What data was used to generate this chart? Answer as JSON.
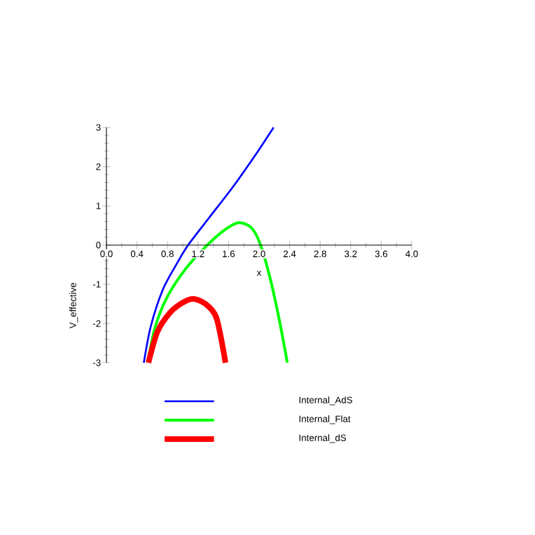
{
  "chart_data": {
    "type": "line",
    "xlabel": "x",
    "ylabel": "V_effective",
    "xlim": [
      0,
      4
    ],
    "ylim": [
      -3,
      3
    ],
    "xticks": [
      {
        "value": 0,
        "label": "0.0"
      },
      {
        "value": 0.4,
        "label": "0.4"
      },
      {
        "value": 0.8,
        "label": "0.8"
      },
      {
        "value": 1.2,
        "label": "1.2"
      },
      {
        "value": 1.6,
        "label": "1.6"
      },
      {
        "value": 2.0,
        "label": "2.0"
      },
      {
        "value": 2.4,
        "label": "2.4"
      },
      {
        "value": 2.8,
        "label": "2.8"
      },
      {
        "value": 3.2,
        "label": "3.2"
      },
      {
        "value": 3.6,
        "label": "3.6"
      },
      {
        "value": 4.0,
        "label": "4.0"
      }
    ],
    "yticks": [
      -3,
      -2,
      -1,
      0,
      1,
      2,
      3
    ],
    "legend": "bottom",
    "line_style": "solid",
    "marker": "none",
    "series": [
      {
        "name": "Internal_AdS",
        "color": "#0000ff",
        "x": [
          0.49,
          0.58,
          0.74,
          0.92,
          1.07,
          1.35,
          1.66,
          1.96,
          2.19
        ],
        "values": [
          -3,
          -2.08,
          -1.13,
          -0.48,
          0,
          0.71,
          1.49,
          2.32,
          3
        ]
      },
      {
        "name": "Internal_Flat",
        "color": "#00ff00",
        "x": [
          0.54,
          0.64,
          0.8,
          1.04,
          1.29,
          1.53,
          1.73,
          1.9,
          2.02,
          2.15,
          2.27,
          2.37
        ],
        "values": [
          -3,
          -2.08,
          -1.31,
          -0.6,
          -0.06,
          0.36,
          0.57,
          0.44,
          0,
          -0.89,
          -1.96,
          -3
        ]
      },
      {
        "name": "Internal_dS",
        "color": "#ff0000",
        "x": [
          0.55,
          0.67,
          0.83,
          0.98,
          1.13,
          1.29,
          1.44,
          1.56
        ],
        "values": [
          -3,
          -2.2,
          -1.73,
          -1.49,
          -1.37,
          -1.49,
          -1.85,
          -3
        ]
      }
    ]
  }
}
